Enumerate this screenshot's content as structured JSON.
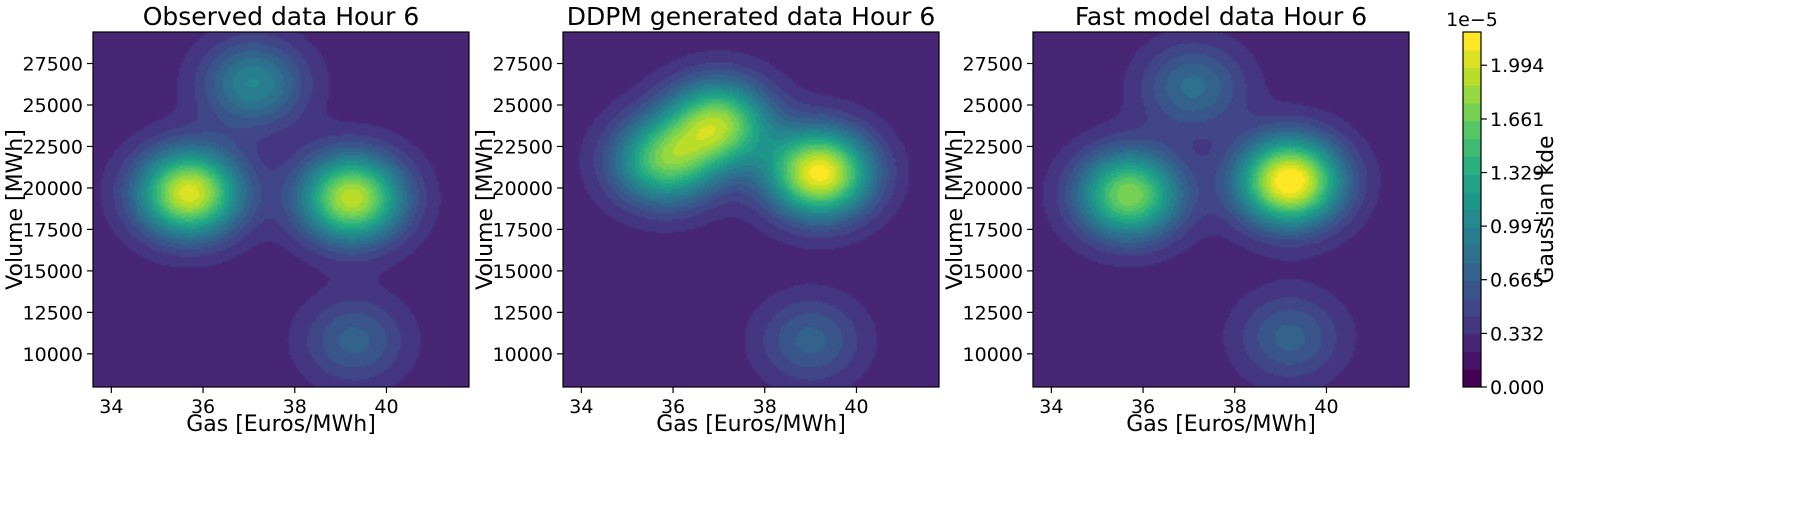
{
  "chart_data": [
    {
      "type": "heatmap",
      "title": "Observed data Hour 6",
      "xlabel": "Gas [Euros/MWh]",
      "ylabel": "Volume [MWh]",
      "xlim": [
        33.6,
        41.8
      ],
      "ylim": [
        8000,
        29400
      ],
      "x_ticks": [
        34,
        36,
        38,
        40
      ],
      "y_ticks": [
        10000,
        12500,
        15000,
        17500,
        20000,
        22500,
        25000,
        27500
      ],
      "peaks": [
        {
          "x": 35.7,
          "y": 19700,
          "density": 2.05e-05
        },
        {
          "x": 39.25,
          "y": 19400,
          "density": 1.95e-05
        },
        {
          "x": 37.1,
          "y": 26300,
          "density": 1e-05
        },
        {
          "x": 39.3,
          "y": 10800,
          "density": 7e-06
        }
      ]
    },
    {
      "type": "heatmap",
      "title": "DDPM generated data Hour 6",
      "xlabel": "Gas [Euros/MWh]",
      "ylabel": "Volume [MWh]",
      "xlim": [
        33.6,
        41.8
      ],
      "ylim": [
        8000,
        29400
      ],
      "x_ticks": [
        34,
        36,
        38,
        40
      ],
      "y_ticks": [
        10000,
        12500,
        15000,
        17500,
        20000,
        22500,
        25000,
        27500
      ],
      "peaks": [
        {
          "x": 39.2,
          "y": 20900,
          "density": 2.15e-05
        },
        {
          "x": 37.0,
          "y": 23900,
          "density": 1.75e-05
        },
        {
          "x": 35.8,
          "y": 21600,
          "density": 1.55e-05
        },
        {
          "x": 39.0,
          "y": 10800,
          "density": 7e-06
        }
      ]
    },
    {
      "type": "heatmap",
      "title": "Fast model data Hour 6",
      "xlabel": "Gas [Euros/MWh]",
      "ylabel": "Volume [MWh]",
      "xlim": [
        33.6,
        41.8
      ],
      "ylim": [
        8000,
        29400
      ],
      "x_ticks": [
        34,
        36,
        38,
        40
      ],
      "y_ticks": [
        10000,
        12500,
        15000,
        17500,
        20000,
        22500,
        25000,
        27500
      ],
      "peaks": [
        {
          "x": 39.2,
          "y": 20400,
          "density": 2.25e-05
        },
        {
          "x": 35.7,
          "y": 19600,
          "density": 1.75e-05
        },
        {
          "x": 37.1,
          "y": 26100,
          "density": 8e-06
        },
        {
          "x": 39.2,
          "y": 11000,
          "density": 7e-06
        }
      ]
    }
  ],
  "colorbar": {
    "label": "Gaussian kde",
    "exponent_label": "1e−5",
    "tick_labels": [
      "0.000",
      "0.332",
      "0.665",
      "0.997",
      "1.329",
      "1.661",
      "1.994"
    ],
    "tick_values": [
      0.0,
      0.332,
      0.665,
      0.997,
      1.329,
      1.661,
      1.994
    ],
    "range": [
      0.0,
      2.2
    ],
    "levels": 20,
    "colormap": "viridis",
    "colors": [
      "#440154",
      "#482173",
      "#433e85",
      "#38588c",
      "#2d708e",
      "#25858e",
      "#1e9b8a",
      "#2ab07f",
      "#52c569",
      "#86d549",
      "#c2df23",
      "#fde725"
    ]
  }
}
